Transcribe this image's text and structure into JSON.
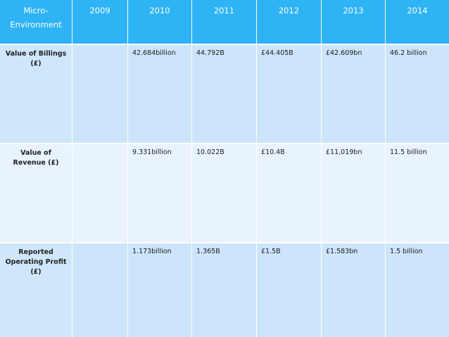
{
  "table": {
    "headers": [
      "Micro-\nEnvironment",
      "2009",
      "2010",
      "2011",
      "2012",
      "2013",
      "2014"
    ],
    "header_color": "#2eb3f5",
    "rows": [
      {
        "label": "Value of Billings (£)",
        "values": [
          "",
          "42.684billion",
          "44.792B",
          "£44.405B",
          "£42.609bn",
          "46.2 billion"
        ]
      },
      {
        "label": "Value of Revenue (£)",
        "values": [
          "",
          "9.331billion",
          "10.022B",
          "£10.4B",
          "£11,019bn",
          "11.5 billion"
        ]
      },
      {
        "label": "Reported Operating Profit (£)",
        "values": [
          "",
          "1.173billion",
          "1.365B",
          "£1.5B",
          "£1.583bn",
          "1.5 billion"
        ]
      }
    ]
  }
}
